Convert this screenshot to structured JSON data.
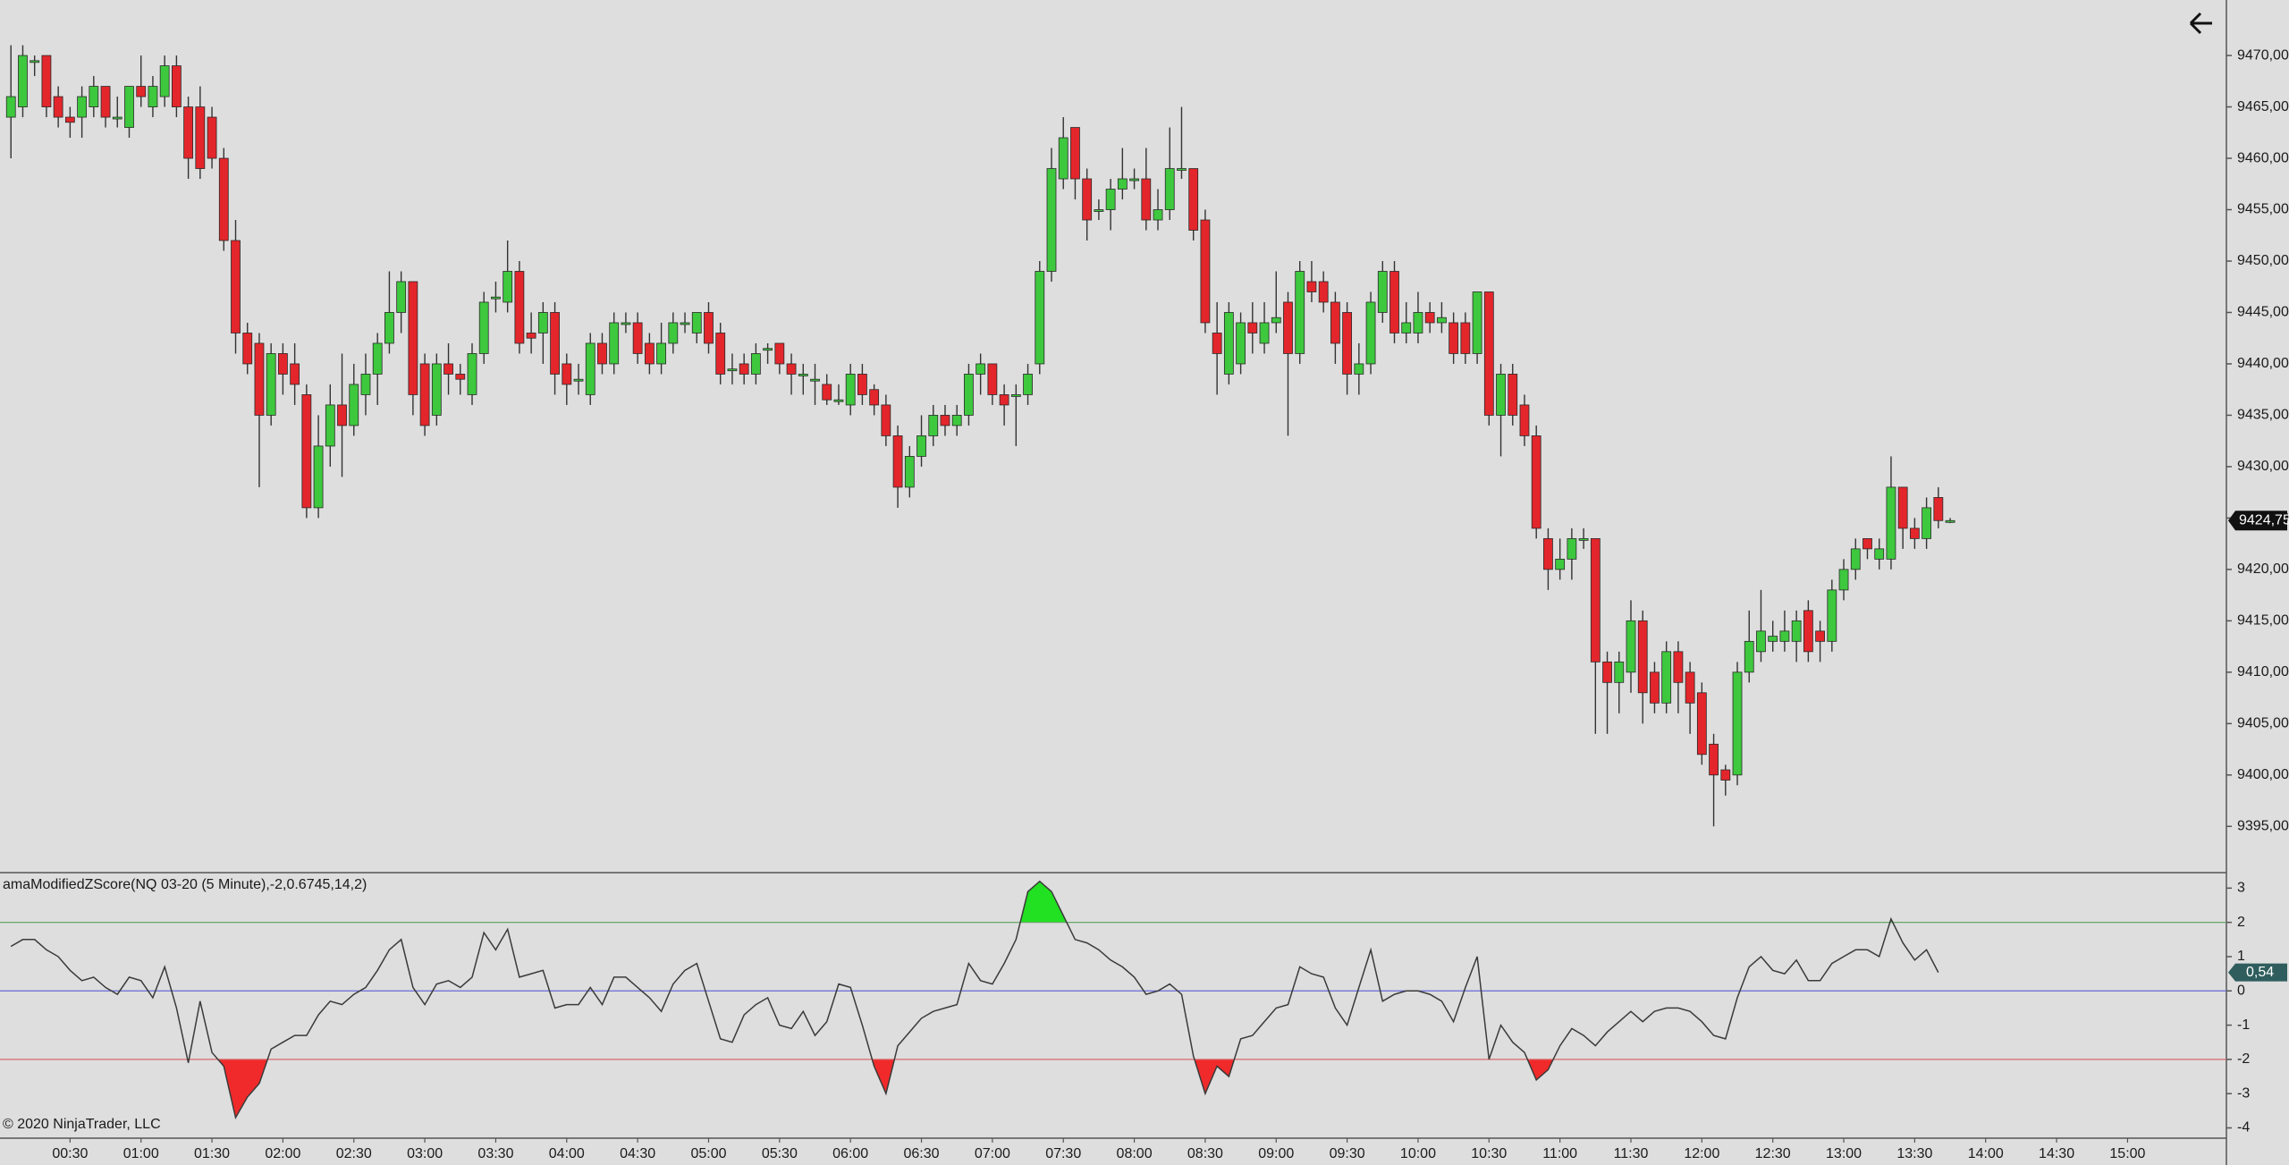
{
  "copyright": "© 2020 NinjaTrader, LLC",
  "chart_data": [
    {
      "type": "candlestick",
      "up_color": "#3ec83e",
      "down_color": "#e3262b",
      "wick_color": "#333333",
      "ylim": [
        9390.5,
        9475.4
      ],
      "yticks": [
        {
          "value": 9395,
          "label": "9395,00"
        },
        {
          "value": 9400,
          "label": "9400,00"
        },
        {
          "value": 9405,
          "label": "9405,00"
        },
        {
          "value": 9410,
          "label": "9410,00"
        },
        {
          "value": 9415,
          "label": "9415,00"
        },
        {
          "value": 9420,
          "label": "9420,00"
        },
        {
          "value": 9425,
          "label": "9425,00"
        },
        {
          "value": 9430,
          "label": "9430,00"
        },
        {
          "value": 9435,
          "label": "9435,00"
        },
        {
          "value": 9440,
          "label": "9440,00"
        },
        {
          "value": 9445,
          "label": "9445,00"
        },
        {
          "value": 9450,
          "label": "9450,00"
        },
        {
          "value": 9455,
          "label": "9455,00"
        },
        {
          "value": 9460,
          "label": "9460,00"
        },
        {
          "value": 9465,
          "label": "9465,00"
        },
        {
          "value": 9470,
          "label": "9470,00"
        }
      ],
      "last_label": "9424,75",
      "open": [
        9464,
        9465,
        9469.5,
        9470,
        9466,
        9464,
        9464,
        9465,
        9467,
        9464,
        9463,
        9467,
        9465,
        9466,
        9469,
        9465,
        9465,
        9464,
        9460,
        9452,
        9443,
        9442,
        9435,
        9441,
        9440,
        9437,
        9426,
        9432,
        9436,
        9434,
        9437,
        9439,
        9442,
        9445,
        9448,
        9440,
        9435,
        9440,
        9439,
        9437,
        9441,
        9446.5,
        9446,
        9449,
        9443,
        9443,
        9445,
        9440,
        9438.5,
        9437,
        9442,
        9440,
        9444,
        9444,
        9442,
        9440,
        9442,
        9444,
        9443,
        9445,
        9443,
        9439.5,
        9440,
        9439,
        9441.5,
        9442,
        9440,
        9439,
        9438.5,
        9438,
        9436.5,
        9436,
        9439,
        9437.5,
        9436,
        9433,
        9428,
        9431,
        9433,
        9435,
        9434,
        9435,
        9439,
        9440,
        9437,
        9437,
        9437,
        9440,
        9449,
        9458,
        9463,
        9458,
        9455,
        9455,
        9457,
        9458,
        9458,
        9454,
        9455,
        9459,
        9459,
        9454,
        9443,
        9439,
        9440,
        9444,
        9442,
        9444,
        9446,
        9441,
        9448,
        9448,
        9446,
        9445,
        9439,
        9440,
        9445,
        9449,
        9443,
        9443,
        9445,
        9444,
        9444,
        9444,
        9441,
        9447,
        9435,
        9439,
        9436,
        9433,
        9423,
        9420,
        9421,
        9423,
        9423,
        9411,
        9409,
        9410,
        9415,
        9410,
        9407,
        9412,
        9410,
        9408,
        9403,
        9400.5,
        9400,
        9410,
        9412,
        9413,
        9413,
        9413,
        9416,
        9414,
        9413,
        9418,
        9420,
        9423,
        9421,
        9421,
        9428,
        9424,
        9423,
        9427,
        9424.75,
        null,
        null,
        null,
        null,
        null,
        null,
        null,
        null,
        null,
        null,
        null,
        null,
        null,
        null,
        null
      ],
      "high": [
        9471,
        9471,
        9470,
        9470,
        9467,
        9465,
        9467,
        9468,
        9467,
        9466,
        9467,
        9470,
        9468,
        9470,
        9470,
        9466,
        9467,
        9465,
        9461,
        9454,
        9444,
        9443,
        9442,
        9442,
        9442,
        9438,
        9435,
        9438,
        9441,
        9440,
        9441,
        9443,
        9449,
        9449,
        9448,
        9441,
        9441,
        9442,
        9440,
        9442,
        9447,
        9448,
        9452,
        9450,
        9445,
        9446,
        9446,
        9441,
        9440,
        9443,
        9443,
        9445,
        9445,
        9445,
        9443,
        9444,
        9445,
        9445,
        9445,
        9446,
        9444,
        9441,
        9441,
        9442,
        9442,
        9442,
        9441,
        9440,
        9440,
        9439,
        9438,
        9440,
        9440,
        9438,
        9437,
        9434,
        9432,
        9435,
        9436,
        9436,
        9436,
        9440,
        9441,
        9440,
        9438,
        9438,
        9440,
        9450,
        9461,
        9464,
        9463,
        9459,
        9456,
        9458,
        9461,
        9459,
        9461,
        9457,
        9463,
        9465,
        9459,
        9455,
        9446,
        9446,
        9445,
        9446,
        9446,
        9449,
        9447,
        9450,
        9450,
        9449,
        9447,
        9446,
        9442,
        9447,
        9450,
        9450,
        9446,
        9447,
        9446,
        9446,
        9445,
        9445,
        9447,
        9447,
        9440,
        9440,
        9437,
        9434,
        9424,
        9423,
        9424,
        9424,
        9423,
        9412,
        9412,
        9417,
        9416,
        9411,
        9413,
        9413,
        9411,
        9409,
        9404,
        9401,
        9411,
        9416,
        9418,
        9415,
        9416,
        9416,
        9417,
        9415,
        9419,
        9421,
        9423,
        9423,
        9423,
        9431,
        9428,
        9425,
        9427,
        9428,
        9425,
        null,
        null,
        null,
        null,
        null,
        null,
        null,
        null,
        null,
        null,
        null,
        null,
        null,
        null,
        null
      ],
      "low": [
        9460,
        9464,
        9468,
        9464,
        9463,
        9462,
        9462,
        9464,
        9463,
        9463,
        9462,
        9465,
        9464,
        9465,
        9464,
        9458,
        9458,
        9459,
        9451,
        9441,
        9439,
        9428,
        9434,
        9437,
        9436,
        9425,
        9425,
        9430,
        9429,
        9433,
        9435,
        9436,
        9441,
        9443,
        9435,
        9433,
        9434,
        9437,
        9437,
        9436,
        9440,
        9445,
        9445,
        9441,
        9441,
        9440,
        9437,
        9436,
        9437,
        9436,
        9439,
        9439,
        9443,
        9440,
        9439,
        9439,
        9441,
        9443,
        9442,
        9441,
        9438,
        9438,
        9438,
        9438,
        9440,
        9439,
        9437,
        9437,
        9436,
        9436,
        9436,
        9435,
        9436,
        9435,
        9432,
        9426,
        9427,
        9430,
        9432,
        9433,
        9433,
        9434,
        9437,
        9436,
        9434,
        9432,
        9436,
        9439,
        9448,
        9457,
        9456,
        9452,
        9454,
        9453,
        9456,
        9457,
        9453,
        9453,
        9454,
        9458,
        9452,
        9443,
        9437,
        9438,
        9439,
        9441,
        9441,
        9443,
        9433,
        9440,
        9446,
        9445,
        9440,
        9437,
        9437,
        9439,
        9444,
        9442,
        9442,
        9442,
        9443,
        9443,
        9440,
        9440,
        9440,
        9434,
        9431,
        9434,
        9432,
        9423,
        9418,
        9419,
        9419,
        9422,
        9404,
        9404,
        9406,
        9408,
        9405,
        9406,
        9406,
        9406,
        9404,
        9401,
        9395,
        9398,
        9399,
        9409,
        9411,
        9412,
        9412,
        9411,
        9411,
        9411,
        9412,
        9417,
        9419,
        9421,
        9420,
        9420,
        9422,
        9422,
        9422,
        9424,
        9424.5,
        null,
        null,
        null,
        null,
        null,
        null,
        null,
        null,
        null,
        null,
        null,
        null,
        null,
        null,
        null
      ],
      "close": [
        9466,
        9470,
        9469.5,
        9465,
        9464,
        9463.5,
        9466,
        9467,
        9464,
        9464,
        9467,
        9466,
        9467,
        9469,
        9465,
        9460,
        9459,
        9460,
        9452,
        9443,
        9440,
        9435,
        9441,
        9439,
        9438,
        9426,
        9432,
        9436,
        9434,
        9438,
        9439,
        9442,
        9445,
        9448,
        9437,
        9434,
        9440,
        9439,
        9438.5,
        9441,
        9446,
        9446.5,
        9449,
        9442,
        9442.5,
        9445,
        9439,
        9438,
        9438.5,
        9442,
        9440,
        9444,
        9444,
        9441,
        9440,
        9442,
        9444,
        9444,
        9445,
        9442,
        9439,
        9439.5,
        9439,
        9441,
        9441.5,
        9440,
        9439,
        9439,
        9438.5,
        9436.5,
        9436.5,
        9439,
        9437,
        9436,
        9433,
        9428,
        9431,
        9433,
        9435,
        9434,
        9435,
        9439,
        9440,
        9437,
        9436,
        9437,
        9439,
        9449,
        9459,
        9462,
        9458,
        9454,
        9455,
        9457,
        9458,
        9458,
        9454,
        9455,
        9459,
        9459,
        9453,
        9444,
        9441,
        9445,
        9444,
        9443,
        9444,
        9444.5,
        9441,
        9449,
        9447,
        9446,
        9442,
        9439,
        9440,
        9446,
        9449,
        9443,
        9444,
        9445,
        9444,
        9444.5,
        9441,
        9441,
        9447,
        9435,
        9439,
        9435,
        9433,
        9424,
        9420,
        9421,
        9423,
        9423,
        9411,
        9409,
        9411,
        9415,
        9408,
        9407,
        9412,
        9409,
        9407,
        9402,
        9400,
        9399.5,
        9410,
        9413,
        9414,
        9413.5,
        9414,
        9415,
        9412,
        9413,
        9418,
        9420,
        9422,
        9422,
        9422,
        9428,
        9424,
        9423,
        9426,
        9424.75,
        9424.75,
        null,
        null,
        null,
        null,
        null,
        null,
        null,
        null,
        null,
        null,
        null,
        null,
        null,
        null,
        null
      ]
    },
    {
      "type": "line",
      "title": "amaModifiedZScore(NQ 03-20 (5 Minute),-2,0.6745,14,2)",
      "color": "#3a3a3a",
      "ylim": [
        -4.3,
        3.4
      ],
      "yticks": [
        3,
        2,
        1,
        0,
        -1,
        -2,
        -3,
        -4
      ],
      "levels": [
        {
          "value": 2,
          "color": "#6aa56a",
          "fill": "#22e022"
        },
        {
          "value": 0,
          "color": "#6a6ad8"
        },
        {
          "value": -2,
          "color": "#d86a6a",
          "fill": "#f02a2a"
        }
      ],
      "last_label": "0,54",
      "categories": [
        null,
        null,
        null,
        null,
        null,
        "00:30",
        null,
        null,
        null,
        null,
        null,
        "01:00",
        null,
        null,
        null,
        null,
        null,
        "01:30",
        null,
        null,
        null,
        null,
        null,
        "02:00",
        null,
        null,
        null,
        null,
        null,
        "02:30",
        null,
        null,
        null,
        null,
        null,
        "03:00",
        null,
        null,
        null,
        null,
        null,
        "03:30",
        null,
        null,
        null,
        null,
        null,
        "04:00",
        null,
        null,
        null,
        null,
        null,
        "04:30",
        null,
        null,
        null,
        null,
        null,
        "05:00",
        null,
        null,
        null,
        null,
        null,
        "05:30",
        null,
        null,
        null,
        null,
        null,
        "06:00",
        null,
        null,
        null,
        null,
        null,
        "06:30",
        null,
        null,
        null,
        null,
        null,
        "07:00",
        null,
        null,
        null,
        null,
        null,
        "07:30",
        null,
        null,
        null,
        null,
        null,
        "08:00",
        null,
        null,
        null,
        null,
        null,
        "08:30",
        null,
        null,
        null,
        null,
        null,
        "09:00",
        null,
        null,
        null,
        null,
        null,
        "09:30",
        null,
        null,
        null,
        null,
        null,
        "10:00",
        null,
        null,
        null,
        null,
        null,
        "10:30",
        null,
        null,
        null,
        null,
        null,
        "11:00",
        null,
        null,
        null,
        null,
        null,
        "11:30",
        null,
        null,
        null,
        null,
        null,
        "12:00",
        null,
        null,
        null,
        null,
        null,
        "12:30",
        null,
        null,
        null,
        null,
        null,
        "13:00",
        null,
        null,
        null,
        null,
        null,
        "13:30",
        null,
        null,
        null,
        null,
        null,
        "14:00",
        null,
        null,
        null,
        null,
        null,
        "14:30",
        null,
        null,
        null,
        null,
        null,
        "15:00"
      ],
      "values": [
        1.3,
        1.5,
        1.5,
        1.2,
        1.0,
        0.6,
        0.3,
        0.4,
        0.1,
        -0.1,
        0.4,
        0.3,
        -0.2,
        0.7,
        -0.5,
        -2.1,
        -0.3,
        -1.8,
        -2.2,
        -3.7,
        -3.1,
        -2.7,
        -1.7,
        -1.5,
        -1.3,
        -1.3,
        -0.7,
        -0.3,
        -0.4,
        -0.1,
        0.1,
        0.6,
        1.2,
        1.5,
        0.1,
        -0.4,
        0.2,
        0.3,
        0.1,
        0.4,
        1.7,
        1.2,
        1.8,
        0.4,
        0.5,
        0.6,
        -0.5,
        -0.4,
        -0.4,
        0.1,
        -0.4,
        0.4,
        0.4,
        0.1,
        -0.2,
        -0.6,
        0.2,
        0.6,
        0.8,
        -0.3,
        -1.4,
        -1.5,
        -0.7,
        -0.4,
        -0.2,
        -1.0,
        -1.1,
        -0.6,
        -1.3,
        -0.9,
        0.2,
        0.1,
        -1.0,
        -2.2,
        -3.0,
        -1.6,
        -1.2,
        -0.8,
        -0.6,
        -0.5,
        -0.4,
        0.8,
        0.3,
        0.2,
        0.8,
        1.5,
        2.9,
        3.2,
        2.9,
        2.2,
        1.5,
        1.4,
        1.2,
        0.9,
        0.7,
        0.4,
        -0.1,
        0,
        0.2,
        -0.1,
        -1.9,
        -3.0,
        -2.2,
        -2.5,
        -1.4,
        -1.3,
        -0.9,
        -0.5,
        -0.4,
        0.7,
        0.5,
        0.4,
        -0.5,
        -1.0,
        0.1,
        1.2,
        -0.3,
        -0.1,
        0,
        0,
        -0.1,
        -0.3,
        -0.9,
        0.1,
        1.0,
        -2.0,
        -1.0,
        -1.5,
        -1.8,
        -2.6,
        -2.3,
        -1.6,
        -1.1,
        -1.3,
        -1.6,
        -1.2,
        -0.9,
        -0.6,
        -0.9,
        -0.6,
        -0.5,
        -0.5,
        -0.6,
        -0.9,
        -1.3,
        -1.4,
        -0.2,
        0.7,
        1.0,
        0.6,
        0.5,
        0.9,
        0.3,
        0.3,
        0.8,
        1.0,
        1.2,
        1.2,
        1.0,
        2.1,
        1.4,
        0.9,
        1.2,
        0.54,
        null,
        null,
        null,
        null,
        null,
        null,
        null,
        null,
        null,
        null,
        null,
        null,
        null,
        null,
        null,
        null
      ]
    }
  ]
}
